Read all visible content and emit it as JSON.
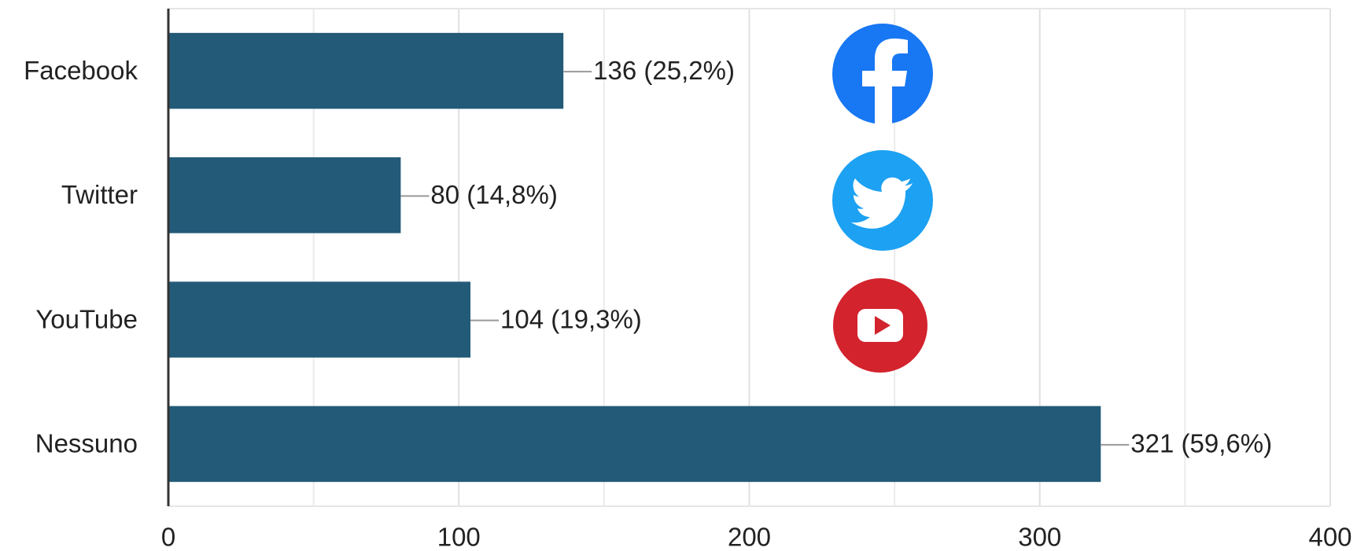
{
  "chart_data": {
    "type": "barh",
    "categories": [
      "Facebook",
      "Twitter",
      "YouTube",
      "Nessuno"
    ],
    "values": [
      136,
      80,
      104,
      321
    ],
    "value_labels": [
      "136 (25,2%)",
      "80 (14,8%)",
      "104 (19,3%)",
      "321 (59,6%)"
    ],
    "color": "#235a78",
    "xlim": [
      0,
      400
    ],
    "xticks": [
      0,
      100,
      200,
      300,
      400
    ],
    "minor_xticks": [
      50,
      150,
      250,
      350
    ],
    "grid": true
  }
}
